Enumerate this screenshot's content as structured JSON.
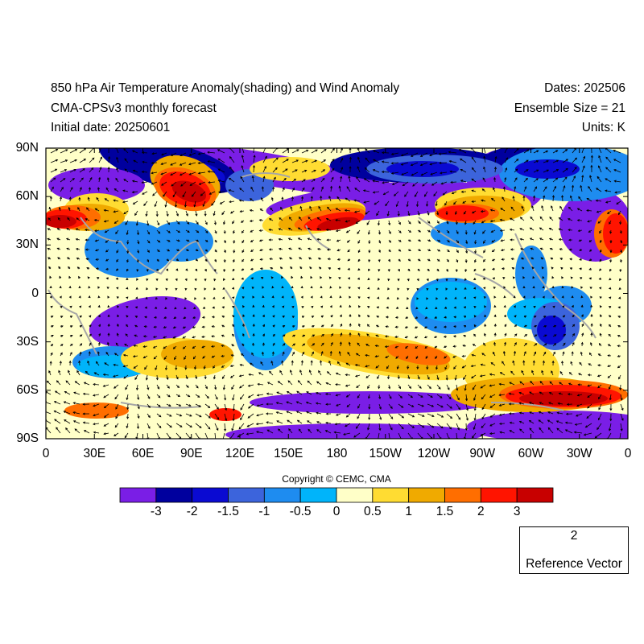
{
  "header": {
    "title": "850 hPa Air Temperature Anomaly(shading) and Wind Anomaly",
    "model": "CMA-CPSv3 monthly forecast",
    "initial_date": "Initial date: 20250601",
    "dates": "Dates: 202506",
    "ensemble": "Ensemble Size = 21",
    "units": "Units: K"
  },
  "axes": {
    "lat_labels": [
      "90N",
      "60N",
      "30N",
      "0",
      "30S",
      "60S",
      "90S"
    ],
    "lon_labels": [
      "0",
      "30E",
      "60E",
      "90E",
      "120E",
      "150E",
      "180",
      "150W",
      "120W",
      "90W",
      "60W",
      "30W",
      "0"
    ]
  },
  "copyright": "Copyright © CEMC, CMA",
  "colorbar": {
    "levels": [
      "-3",
      "-2",
      "-1.5",
      "-1",
      "-0.5",
      "0",
      "0.5",
      "1",
      "1.5",
      "2",
      "3"
    ],
    "colors": [
      "#7a1ee6",
      "#00009e",
      "#0a0ad2",
      "#3c64dc",
      "#1e8cf0",
      "#00b4fa",
      "#ffffc8",
      "#ffdc32",
      "#f0aa00",
      "#ff6e00",
      "#ff1400",
      "#c80000"
    ]
  },
  "reference_vector": {
    "magnitude": "2",
    "label": "Reference Vector"
  }
}
